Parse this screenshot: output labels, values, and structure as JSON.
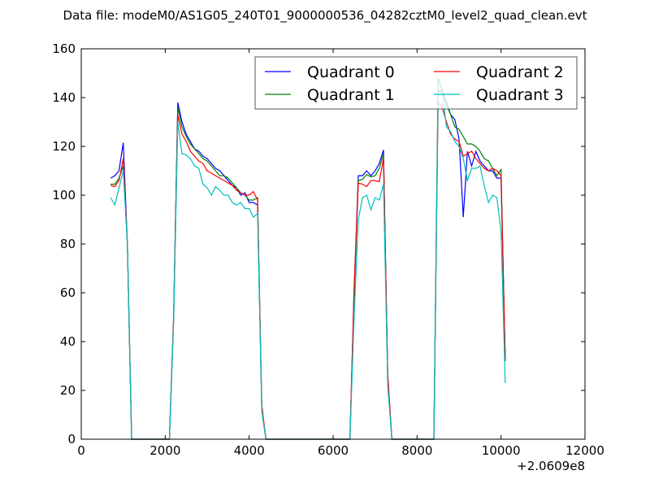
{
  "chart_data": {
    "type": "line",
    "title": "Data file: modeM0/AS1G05_240T01_9000000536_04282cztM0_level2_quad_clean.evt",
    "xlabel": "",
    "ylabel": "",
    "x_offset_label": "+2.0609e8",
    "xlim": [
      0,
      12000
    ],
    "ylim": [
      0,
      160
    ],
    "xticks": [
      0,
      2000,
      4000,
      6000,
      8000,
      10000,
      12000
    ],
    "yticks": [
      0,
      20,
      40,
      60,
      80,
      100,
      120,
      140,
      160
    ],
    "legend_placement": "top-right",
    "legend_columns": 2,
    "x_start": 700,
    "x_step": 100,
    "series": [
      {
        "name": "Quadrant 0",
        "color": "#0000ff",
        "values": [
          107,
          108,
          110,
          121.5,
          80,
          0,
          0,
          0,
          0,
          0,
          0,
          0,
          0,
          0,
          0,
          50,
          138,
          130,
          125,
          122,
          119,
          118,
          116,
          115,
          113,
          111,
          110,
          108,
          106,
          104,
          103,
          100,
          101,
          97,
          97,
          96,
          12,
          0,
          0,
          0,
          0,
          0,
          0,
          0,
          0,
          0,
          0,
          0,
          0,
          0,
          0,
          0,
          0,
          0,
          0,
          0,
          0,
          0,
          60,
          108,
          108,
          110,
          108,
          110,
          113,
          118.5,
          25,
          0,
          0,
          0,
          0,
          0,
          0,
          0,
          0,
          0,
          0,
          0,
          142.5,
          143,
          138,
          133,
          131,
          123,
          91,
          118,
          112,
          118,
          114,
          112,
          110,
          110,
          107,
          107,
          33
        ]
      },
      {
        "name": "Quadrant 1",
        "color": "#008000",
        "values": [
          104.5,
          104.5,
          107,
          112,
          80,
          0,
          0,
          0,
          0,
          0,
          0,
          0,
          0,
          0,
          0,
          50,
          136,
          128,
          124,
          121,
          119,
          117,
          115,
          114,
          112,
          110,
          108,
          108,
          107,
          105,
          103,
          101,
          100,
          98,
          98,
          99,
          12,
          0,
          0,
          0,
          0,
          0,
          0,
          0,
          0,
          0,
          0,
          0,
          0,
          0,
          0,
          0,
          0,
          0,
          0,
          0,
          0,
          0,
          58,
          106,
          106.5,
          108.5,
          107.5,
          108,
          111,
          117,
          25,
          0,
          0,
          0,
          0,
          0,
          0,
          0,
          0,
          0,
          0,
          0,
          148,
          143,
          137,
          133,
          128,
          127,
          124,
          121,
          121,
          120,
          118,
          115,
          114,
          111,
          108,
          110.5,
          32
        ]
      },
      {
        "name": "Quadrant 2",
        "color": "#ff0000",
        "values": [
          104,
          103.5,
          106,
          115,
          80,
          0,
          0,
          0,
          0,
          0,
          0,
          0,
          0,
          0,
          0,
          50,
          133,
          125,
          122,
          118,
          116,
          114,
          113,
          110,
          109,
          108,
          107,
          106,
          105,
          104,
          102,
          101,
          100,
          100,
          101.5,
          98,
          14,
          0,
          0,
          0,
          0,
          0,
          0,
          0,
          0,
          0,
          0,
          0,
          0,
          0,
          0,
          0,
          0,
          0,
          0,
          0,
          0,
          0,
          62,
          105,
          104.5,
          103.5,
          106,
          106,
          105.5,
          115,
          27,
          0,
          0,
          0,
          0,
          0,
          0,
          0,
          0,
          0,
          0,
          0,
          138,
          136,
          130,
          125,
          123,
          122,
          116,
          117,
          118,
          115,
          113,
          111,
          110,
          111,
          110,
          108,
          32
        ]
      },
      {
        "name": "Quadrant 3",
        "color": "#00bfbf",
        "values": [
          99,
          96,
          103,
          110,
          80,
          0,
          0,
          0,
          0,
          0,
          0,
          0,
          0,
          0,
          0,
          48,
          130,
          117,
          116.5,
          115,
          112,
          111,
          104.5,
          103,
          100,
          103.5,
          102,
          100,
          100,
          97,
          96,
          97,
          94.5,
          94.5,
          91,
          92.5,
          12,
          0,
          0,
          0,
          0,
          0,
          0,
          0,
          0,
          0,
          0,
          0,
          0,
          0,
          0,
          0,
          0,
          0,
          0,
          0,
          0,
          0,
          50,
          90,
          99,
          100,
          94,
          99,
          98,
          104.5,
          22,
          0,
          0,
          0,
          0,
          0,
          0,
          0,
          0,
          0,
          0,
          0,
          142,
          142,
          128,
          126,
          122,
          120,
          115,
          106,
          111,
          111,
          112,
          104,
          97,
          100,
          99,
          85,
          23
        ]
      }
    ]
  }
}
